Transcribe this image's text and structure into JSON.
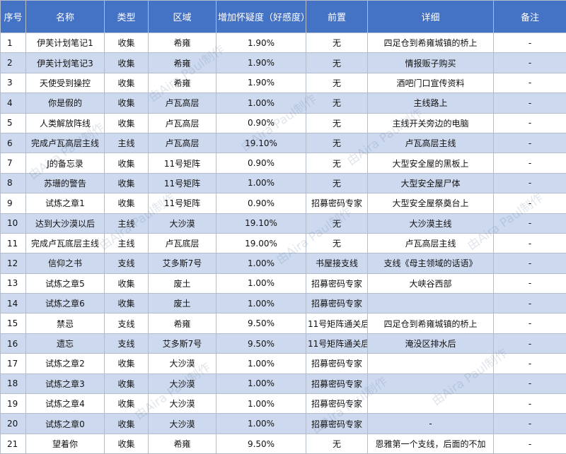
{
  "table": {
    "columns": [
      "序号",
      "名称",
      "类型",
      "区域",
      "增加怀疑度（好感度）",
      "前置",
      "详细",
      "备注"
    ],
    "rows": [
      [
        "1",
        "伊芙计划笔记1",
        "收集",
        "希雍",
        "1.90%",
        "无",
        "四足仓到希雍城镇的桥上",
        "-"
      ],
      [
        "2",
        "伊芙计划笔记3",
        "收集",
        "希雍",
        "1.90%",
        "无",
        "情报贩子购买",
        "-"
      ],
      [
        "3",
        "天使受到操控",
        "收集",
        "希雍",
        "1.90%",
        "无",
        "酒吧门口宣传资料",
        "-"
      ],
      [
        "4",
        "你是假的",
        "收集",
        "卢瓦高层",
        "1.00%",
        "无",
        "主线路上",
        "-"
      ],
      [
        "5",
        "人类解放阵线",
        "收集",
        "卢瓦高层",
        "0.90%",
        "无",
        "主线开关旁边的电脑",
        "-"
      ],
      [
        "6",
        "完成卢瓦高层主线",
        "主线",
        "卢瓦高层",
        "19.10%",
        "无",
        "卢瓦高层主线",
        "-"
      ],
      [
        "7",
        "J的备忘录",
        "收集",
        "11号矩阵",
        "0.90%",
        "无",
        "大型安全屋的黑板上",
        "-"
      ],
      [
        "8",
        "苏珊的警告",
        "收集",
        "11号矩阵",
        "1.00%",
        "无",
        "大型安全屋尸体",
        "-"
      ],
      [
        "9",
        "试炼之章1",
        "收集",
        "11号矩阵",
        "0.90%",
        "招募密码专家",
        "大型安全屋祭奠台上",
        "-"
      ],
      [
        "10",
        "达到大沙漠以后",
        "主线",
        "大沙漠",
        "19.10%",
        "无",
        "大沙漠主线",
        "-"
      ],
      [
        "11",
        "完成卢瓦底层主线",
        "主线",
        "卢瓦底层",
        "19.00%",
        "无",
        "卢瓦高层主线",
        "-"
      ],
      [
        "12",
        "信仰之书",
        "支线",
        "艾多斯7号",
        "1.00%",
        "书屋接支线",
        "支线《母主领域的话语》",
        "-"
      ],
      [
        "13",
        "试炼之章5",
        "收集",
        "废土",
        "1.00%",
        "招募密码专家",
        "大峡谷西部",
        "-"
      ],
      [
        "14",
        "试炼之章6",
        "收集",
        "废土",
        "1.00%",
        "招募密码专家",
        null,
        "-"
      ],
      [
        "15",
        "禁忌",
        "支线",
        "希雍",
        "9.50%",
        "11号矩阵通关后",
        "四足仓到希雍城镇的桥上",
        "-"
      ],
      [
        "16",
        "遗忘",
        "支线",
        "艾多斯7号",
        "9.50%",
        "11号矩阵通关后",
        "淹没区排水后",
        "-"
      ],
      [
        "17",
        "试炼之章2",
        "收集",
        "大沙漠",
        "1.00%",
        "招募密码专家",
        null,
        "-"
      ],
      [
        "18",
        "试炼之章3",
        "收集",
        "大沙漠",
        "1.00%",
        "招募密码专家",
        null,
        "-"
      ],
      [
        "19",
        "试炼之章4",
        "收集",
        "大沙漠",
        "1.00%",
        "招募密码专家",
        null,
        "-"
      ],
      [
        "20",
        "试炼之章0",
        "收集",
        "大沙漠",
        "1.00%",
        "招募密码专家",
        "-",
        "-"
      ],
      [
        "21",
        "望着你",
        "收集",
        "希雍",
        "9.50%",
        "无",
        "恩雅第一个支线，后面的不加",
        "-"
      ]
    ]
  },
  "watermark": "由Aira Paul制作"
}
